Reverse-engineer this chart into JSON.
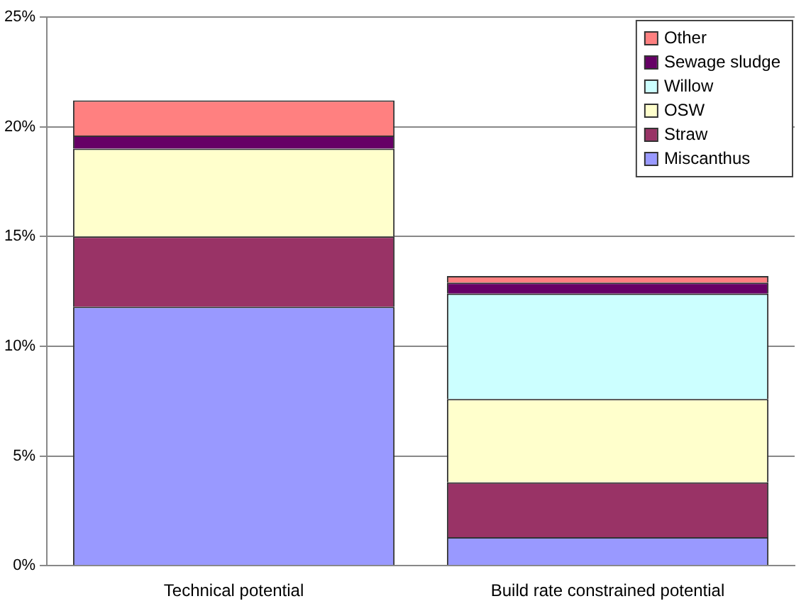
{
  "chart_data": {
    "type": "bar",
    "stacked": true,
    "categories": [
      "Technical potential",
      "Build rate constrained potential"
    ],
    "series": [
      {
        "name": "Miscanthus",
        "color": "#9999ff",
        "values": [
          11.8,
          1.3
        ]
      },
      {
        "name": "Straw",
        "color": "#993366",
        "values": [
          3.2,
          2.5
        ]
      },
      {
        "name": "OSW",
        "color": "#ffffcc",
        "values": [
          4.0,
          3.8
        ]
      },
      {
        "name": "Willow",
        "color": "#ccffff",
        "values": [
          0,
          4.8
        ]
      },
      {
        "name": "Sewage sludge",
        "color": "#660066",
        "values": [
          0.6,
          0.5
        ]
      },
      {
        "name": "Other",
        "color": "#ff8080",
        "values": [
          1.6,
          0.3
        ]
      }
    ],
    "ylim": [
      0,
      25
    ],
    "yticks": [
      {
        "value": 0,
        "label": "0%"
      },
      {
        "value": 5,
        "label": "5%"
      },
      {
        "value": 10,
        "label": "10%"
      },
      {
        "value": 15,
        "label": "15%"
      },
      {
        "value": 20,
        "label": "20%"
      },
      {
        "value": 25,
        "label": "25%"
      }
    ],
    "grid": "y",
    "legend": "top right"
  }
}
